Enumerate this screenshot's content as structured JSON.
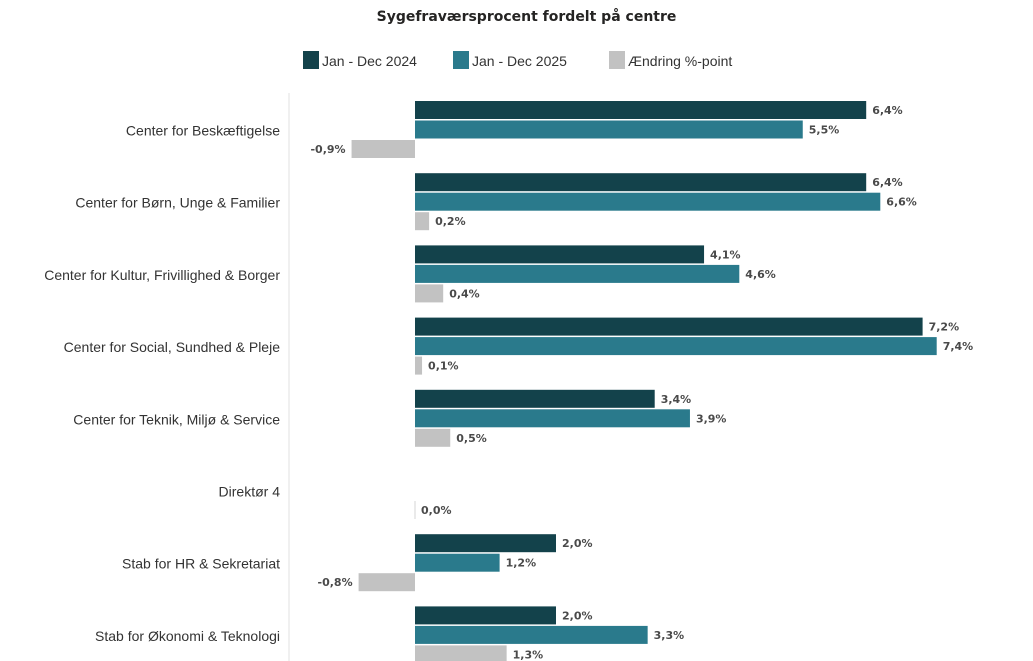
{
  "chart_data": {
    "type": "bar",
    "orientation": "horizontal",
    "title": "Sygefraværsprocent fordelt på centre",
    "xlabel": "",
    "ylabel": "",
    "xlim": [
      -1.4,
      7.5
    ],
    "grid": false,
    "legend_position": "top",
    "categories": [
      "Center for Beskæftigelse",
      "Center for Børn, Unge & Familier",
      "Center for Kultur, Frivillighed & Borger",
      "Center for Social, Sundhed & Pleje",
      "Center for Teknik, Miljø & Service",
      "Direktør 4",
      "Stab for HR & Sekretariat",
      "Stab for Økonomi & Teknologi"
    ],
    "series": [
      {
        "name": "Jan - Dec 2024",
        "color": "#13424b",
        "values": [
          6.4,
          6.4,
          4.1,
          7.2,
          3.4,
          null,
          2.0,
          2.0
        ],
        "labels": [
          "6,4%",
          "6,4%",
          "4,1%",
          "7,2%",
          "3,4%",
          "",
          "2,0%",
          "2,0%"
        ]
      },
      {
        "name": "Jan - Dec 2025",
        "color": "#2a7a8c",
        "values": [
          5.5,
          6.6,
          4.6,
          7.4,
          3.9,
          null,
          1.2,
          3.3
        ],
        "labels": [
          "5,5%",
          "6,6%",
          "4,6%",
          "7,4%",
          "3,9%",
          "",
          "1,2%",
          "3,3%"
        ]
      },
      {
        "name": "Ændring %-point",
        "color": "#c2c2c2",
        "values": [
          -0.9,
          0.2,
          0.4,
          0.1,
          0.5,
          0.0,
          -0.8,
          1.3
        ],
        "labels": [
          "-0,9%",
          "0,2%",
          "0,4%",
          "0,1%",
          "0,5%",
          "0,0%",
          "-0,8%",
          "1,3%"
        ]
      }
    ]
  }
}
